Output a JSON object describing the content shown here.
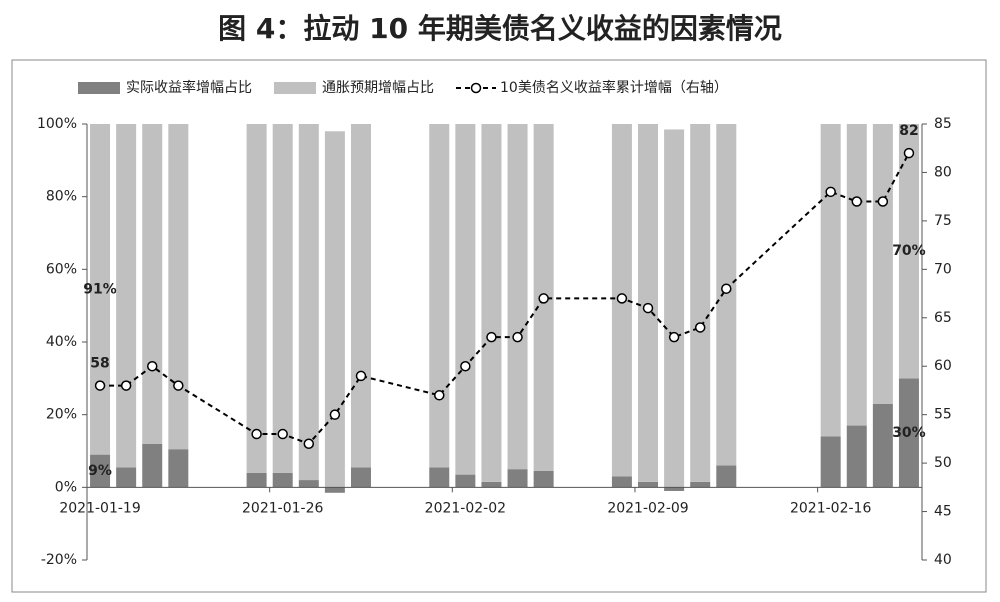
{
  "chart_data": {
    "type": "bar",
    "title": "图 4：拉动 10 年期美债名义收益的因素情况",
    "x": [
      "2021-01-19",
      "2021-01-20",
      "2021-01-21",
      "2021-01-22",
      "2021-01-25",
      "2021-01-26",
      "2021-01-27",
      "2021-01-28",
      "2021-01-29",
      "2021-02-01",
      "2021-02-02",
      "2021-02-03",
      "2021-02-04",
      "2021-02-05",
      "2021-02-08",
      "2021-02-09",
      "2021-02-10",
      "2021-02-11",
      "2021-02-12",
      "2021-02-16",
      "2021-02-17",
      "2021-02-18",
      "2021-02-19"
    ],
    "xlim": [
      "2021-01-18T12:00:00Z",
      "2021-02-19T12:00:00Z"
    ],
    "xticks": [
      "2021-01-19",
      "2021-01-26",
      "2021-02-02",
      "2021-02-09",
      "2021-02-16"
    ],
    "ylim": [
      -20,
      100
    ],
    "yticks": [
      {
        "value": -20,
        "label": "-20%"
      },
      {
        "value": 0,
        "label": "0%"
      },
      {
        "value": 20,
        "label": "20%"
      },
      {
        "value": 40,
        "label": "40%"
      },
      {
        "value": 60,
        "label": "60%"
      },
      {
        "value": 80,
        "label": "80%"
      },
      {
        "value": 100,
        "label": "100%"
      }
    ],
    "y2lim": [
      40,
      85
    ],
    "y2ticks": [
      40,
      45,
      50,
      55,
      60,
      65,
      70,
      75,
      80,
      85
    ],
    "stacked": true,
    "legend": "top",
    "series": [
      {
        "name": "实际收益率增幅占比",
        "color": "#808080",
        "values": [
          9,
          5.5,
          12,
          10.5,
          4,
          4,
          2,
          -1.5,
          5.5,
          5.5,
          3.5,
          1.5,
          5,
          4.5,
          3,
          1.5,
          -1,
          1.5,
          6,
          14,
          17,
          23,
          30
        ],
        "value_labels": [
          "9%",
          null,
          null,
          null,
          null,
          null,
          null,
          null,
          null,
          null,
          null,
          null,
          null,
          null,
          null,
          null,
          null,
          null,
          null,
          null,
          null,
          null,
          "30%"
        ]
      },
      {
        "name": "通胀预期增幅占比",
        "color": "#c0c0c0",
        "values": [
          91,
          94.5,
          88,
          89.5,
          96,
          96,
          98,
          98,
          94.5,
          94.5,
          96.5,
          98.5,
          95,
          95.5,
          97,
          98.5,
          98.5,
          98.5,
          94,
          86,
          83,
          77,
          70
        ],
        "value_labels": [
          "91%",
          null,
          null,
          null,
          null,
          null,
          null,
          null,
          null,
          null,
          null,
          null,
          null,
          null,
          null,
          null,
          null,
          null,
          null,
          null,
          null,
          null,
          "70%"
        ]
      },
      {
        "name": "10美债名义收益率累计增幅（右轴）",
        "color": "#000000",
        "type": "line",
        "axis": "y2",
        "values": [
          58,
          58,
          60,
          58,
          53,
          53,
          52,
          55,
          59,
          57,
          60,
          63,
          63,
          67,
          67,
          66,
          63,
          64,
          68,
          78,
          77,
          77,
          82
        ],
        "value_labels": [
          58,
          null,
          null,
          null,
          null,
          null,
          null,
          null,
          null,
          null,
          null,
          null,
          null,
          null,
          null,
          null,
          null,
          null,
          null,
          null,
          null,
          null,
          82
        ]
      }
    ]
  }
}
